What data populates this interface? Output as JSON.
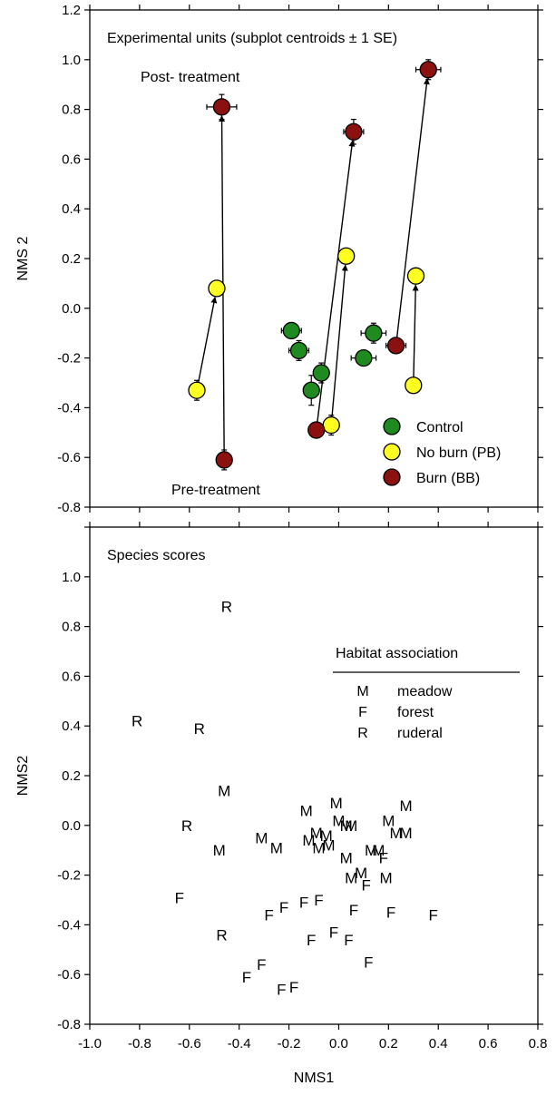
{
  "chart_data": [
    {
      "type": "scatter",
      "panel": "top",
      "title": "Experimental units (subplot centroids ± 1 SE)",
      "xlabel": "",
      "ylabel": "NMS 2",
      "xlim": [
        -1.0,
        0.8
      ],
      "ylim": [
        -0.8,
        1.2
      ],
      "x_ticks": [
        -1.0,
        -0.8,
        -0.6,
        -0.4,
        -0.2,
        0.0,
        0.2,
        0.4,
        0.6,
        0.8
      ],
      "y_ticks": [
        -0.8,
        -0.6,
        -0.4,
        -0.2,
        0.0,
        0.2,
        0.4,
        0.6,
        0.8,
        1.0,
        1.2
      ],
      "y_tick_labels": [
        "-0.8",
        "-0.6",
        "-0.4",
        "-0.2",
        "0.0",
        "0.2",
        "0.4",
        "0.6",
        "0.8",
        "1.0",
        "1.2"
      ],
      "grid": false,
      "legend_position": "bottom-right",
      "annotations": [
        "Post- treatment",
        "Pre-treatment"
      ],
      "series": [
        {
          "name": "Control",
          "color": "#1f8a1f",
          "points": [
            {
              "x": -0.19,
              "y": -0.09,
              "xerr": 0.04,
              "yerr": 0.03
            },
            {
              "x": -0.16,
              "y": -0.17,
              "xerr": 0.04,
              "yerr": 0.04
            },
            {
              "x": -0.07,
              "y": -0.26,
              "xerr": 0.03,
              "yerr": 0.04
            },
            {
              "x": -0.11,
              "y": -0.33,
              "xerr": 0.03,
              "yerr": 0.06
            },
            {
              "x": 0.14,
              "y": -0.1,
              "xerr": 0.05,
              "yerr": 0.04
            },
            {
              "x": 0.1,
              "y": -0.2,
              "xerr": 0.05,
              "yerr": 0.03
            }
          ]
        },
        {
          "name": "No burn (PB)",
          "color": "#ffff22",
          "points": [
            {
              "x": -0.57,
              "y": -0.33,
              "xerr": 0.03,
              "yerr": 0.04
            },
            {
              "x": -0.49,
              "y": 0.08,
              "xerr": 0.03,
              "yerr": 0.02
            },
            {
              "x": -0.03,
              "y": -0.47,
              "xerr": 0.03,
              "yerr": 0.04
            },
            {
              "x": 0.03,
              "y": 0.21,
              "xerr": 0.02,
              "yerr": 0.02
            },
            {
              "x": 0.3,
              "y": -0.31,
              "xerr": 0.0,
              "yerr": 0.0
            },
            {
              "x": 0.31,
              "y": 0.13,
              "xerr": 0.0,
              "yerr": 0.0
            }
          ]
        },
        {
          "name": "Burn (BB)",
          "color": "#8b1010",
          "points": [
            {
              "x": -0.47,
              "y": 0.81,
              "xerr": 0.06,
              "yerr": 0.05
            },
            {
              "x": -0.46,
              "y": -0.61,
              "xerr": 0.02,
              "yerr": 0.04
            },
            {
              "x": 0.06,
              "y": 0.71,
              "xerr": 0.04,
              "yerr": 0.05
            },
            {
              "x": -0.09,
              "y": -0.49,
              "xerr": 0.03,
              "yerr": 0.03
            },
            {
              "x": 0.36,
              "y": 0.96,
              "xerr": 0.05,
              "yerr": 0.04
            },
            {
              "x": 0.23,
              "y": -0.15,
              "xerr": 0.04,
              "yerr": 0.02
            }
          ]
        }
      ],
      "arrows": [
        {
          "from": [
            -0.57,
            -0.33
          ],
          "to": [
            -0.49,
            0.08
          ]
        },
        {
          "from": [
            -0.46,
            -0.61
          ],
          "to": [
            -0.47,
            0.81
          ]
        },
        {
          "from": [
            -0.03,
            -0.47
          ],
          "to": [
            0.03,
            0.21
          ]
        },
        {
          "from": [
            -0.09,
            -0.49
          ],
          "to": [
            0.06,
            0.71
          ]
        },
        {
          "from": [
            0.3,
            -0.31
          ],
          "to": [
            0.31,
            0.13
          ]
        },
        {
          "from": [
            0.23,
            -0.15
          ],
          "to": [
            0.36,
            0.96
          ]
        }
      ]
    },
    {
      "type": "scatter",
      "panel": "bottom",
      "title": "Species scores",
      "xlabel": "NMS1",
      "ylabel": "NMS2",
      "xlim": [
        -1.0,
        0.8
      ],
      "ylim": [
        -0.8,
        1.2
      ],
      "x_ticks": [
        -1.0,
        -0.8,
        -0.6,
        -0.4,
        -0.2,
        0.0,
        0.2,
        0.4,
        0.6,
        0.8
      ],
      "x_tick_labels": [
        "-1.0",
        "-0.8",
        "-0.6",
        "-0.4",
        "-0.2",
        "0.0",
        "0.2",
        "0.4",
        "0.6",
        "0.8"
      ],
      "y_ticks": [
        -0.8,
        -0.6,
        -0.4,
        -0.2,
        0.0,
        0.2,
        0.4,
        0.6,
        0.8,
        1.0,
        1.2
      ],
      "y_tick_labels": [
        "-0.8",
        "-0.6",
        "-0.4",
        "-0.2",
        "0.0",
        "0.2",
        "0.4",
        "0.6",
        "0.8",
        "1.0"
      ],
      "grid": false,
      "legend_position": "right",
      "legend_title": "Habitat association",
      "legend": [
        {
          "code": "M",
          "label": "meadow"
        },
        {
          "code": "F",
          "label": "forest"
        },
        {
          "code": "R",
          "label": "ruderal"
        }
      ],
      "points": [
        {
          "x": -0.45,
          "y": 0.88,
          "label": "R"
        },
        {
          "x": -0.81,
          "y": 0.42,
          "label": "R"
        },
        {
          "x": -0.56,
          "y": 0.39,
          "label": "R"
        },
        {
          "x": -0.61,
          "y": 0.0,
          "label": "R"
        },
        {
          "x": -0.47,
          "y": -0.44,
          "label": "R"
        },
        {
          "x": -0.46,
          "y": 0.14,
          "label": "M"
        },
        {
          "x": -0.48,
          "y": -0.1,
          "label": "M"
        },
        {
          "x": -0.31,
          "y": -0.05,
          "label": "M"
        },
        {
          "x": -0.25,
          "y": -0.09,
          "label": "M"
        },
        {
          "x": -0.13,
          "y": 0.06,
          "label": "M"
        },
        {
          "x": -0.12,
          "y": -0.06,
          "label": "M"
        },
        {
          "x": -0.09,
          "y": -0.03,
          "label": "M"
        },
        {
          "x": -0.08,
          "y": -0.09,
          "label": "M"
        },
        {
          "x": -0.05,
          "y": -0.04,
          "label": "M"
        },
        {
          "x": -0.04,
          "y": -0.08,
          "label": "M"
        },
        {
          "x": -0.01,
          "y": 0.09,
          "label": "M"
        },
        {
          "x": 0.0,
          "y": 0.02,
          "label": "M"
        },
        {
          "x": 0.03,
          "y": 0.0,
          "label": "M"
        },
        {
          "x": 0.05,
          "y": 0.0,
          "label": "M"
        },
        {
          "x": 0.03,
          "y": -0.13,
          "label": "M"
        },
        {
          "x": 0.05,
          "y": -0.21,
          "label": "M"
        },
        {
          "x": 0.09,
          "y": -0.19,
          "label": "M"
        },
        {
          "x": 0.13,
          "y": -0.1,
          "label": "M"
        },
        {
          "x": 0.16,
          "y": -0.1,
          "label": "M"
        },
        {
          "x": 0.2,
          "y": 0.02,
          "label": "M"
        },
        {
          "x": 0.23,
          "y": -0.03,
          "label": "M"
        },
        {
          "x": 0.27,
          "y": 0.08,
          "label": "M"
        },
        {
          "x": 0.27,
          "y": -0.03,
          "label": "M"
        },
        {
          "x": 0.19,
          "y": -0.21,
          "label": "M"
        },
        {
          "x": 0.18,
          "y": -0.13,
          "label": "F"
        },
        {
          "x": 0.11,
          "y": -0.24,
          "label": "F"
        },
        {
          "x": -0.64,
          "y": -0.29,
          "label": "F"
        },
        {
          "x": -0.28,
          "y": -0.36,
          "label": "F"
        },
        {
          "x": -0.22,
          "y": -0.33,
          "label": "F"
        },
        {
          "x": -0.14,
          "y": -0.31,
          "label": "F"
        },
        {
          "x": -0.08,
          "y": -0.3,
          "label": "F"
        },
        {
          "x": 0.06,
          "y": -0.34,
          "label": "F"
        },
        {
          "x": 0.21,
          "y": -0.35,
          "label": "F"
        },
        {
          "x": 0.38,
          "y": -0.36,
          "label": "F"
        },
        {
          "x": -0.11,
          "y": -0.46,
          "label": "F"
        },
        {
          "x": -0.02,
          "y": -0.43,
          "label": "F"
        },
        {
          "x": 0.04,
          "y": -0.46,
          "label": "F"
        },
        {
          "x": 0.12,
          "y": -0.55,
          "label": "F"
        },
        {
          "x": -0.31,
          "y": -0.56,
          "label": "F"
        },
        {
          "x": -0.37,
          "y": -0.61,
          "label": "F"
        },
        {
          "x": -0.23,
          "y": -0.66,
          "label": "F"
        },
        {
          "x": -0.18,
          "y": -0.65,
          "label": "F"
        }
      ]
    }
  ]
}
